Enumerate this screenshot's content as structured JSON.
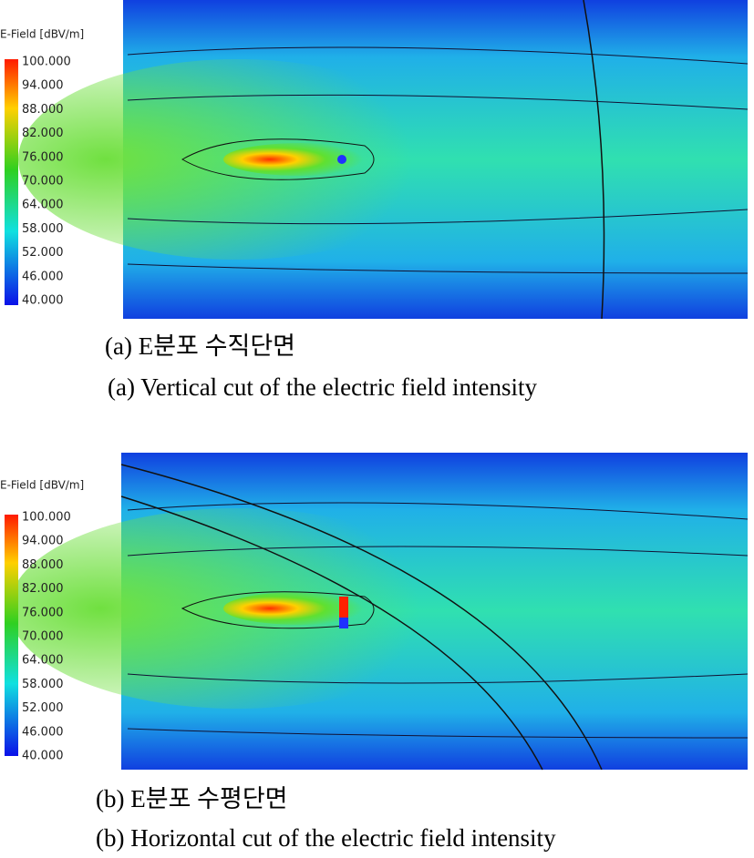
{
  "figure": {
    "panels": [
      {
        "colorbar": {
          "title": "E-Field [dBV/m]",
          "ticks": [
            {
              "value": 100,
              "label": "100.000"
            },
            {
              "value": 94,
              "label": "94.000"
            },
            {
              "value": 88,
              "label": "88.000"
            },
            {
              "value": 82,
              "label": "82.000"
            },
            {
              "value": 76,
              "label": "76.000"
            },
            {
              "value": 70,
              "label": "70.000"
            },
            {
              "value": 64,
              "label": "64.000"
            },
            {
              "value": 58,
              "label": "58.000"
            },
            {
              "value": 52,
              "label": "52.000"
            },
            {
              "value": 46,
              "label": "46.000"
            },
            {
              "value": 40,
              "label": "40.000"
            }
          ]
        },
        "caption_ko": "(a) E분포 수직단면",
        "caption_en": "(a) Vertical cut of the electric field intensity"
      },
      {
        "colorbar": {
          "title": "E-Field [dBV/m]",
          "ticks": [
            {
              "value": 100,
              "label": "100.000"
            },
            {
              "value": 94,
              "label": "94.000"
            },
            {
              "value": 88,
              "label": "88.000"
            },
            {
              "value": 82,
              "label": "82.000"
            },
            {
              "value": 76,
              "label": "76.000"
            },
            {
              "value": 70,
              "label": "70.000"
            },
            {
              "value": 64,
              "label": "64.000"
            },
            {
              "value": 58,
              "label": "58.000"
            },
            {
              "value": 52,
              "label": "52.000"
            },
            {
              "value": 46,
              "label": "46.000"
            },
            {
              "value": 40,
              "label": "40.000"
            }
          ]
        },
        "caption_ko": "(b) E분포 수평단면",
        "caption_en": "(b) Horizontal cut of the electric field intensity"
      }
    ]
  }
}
